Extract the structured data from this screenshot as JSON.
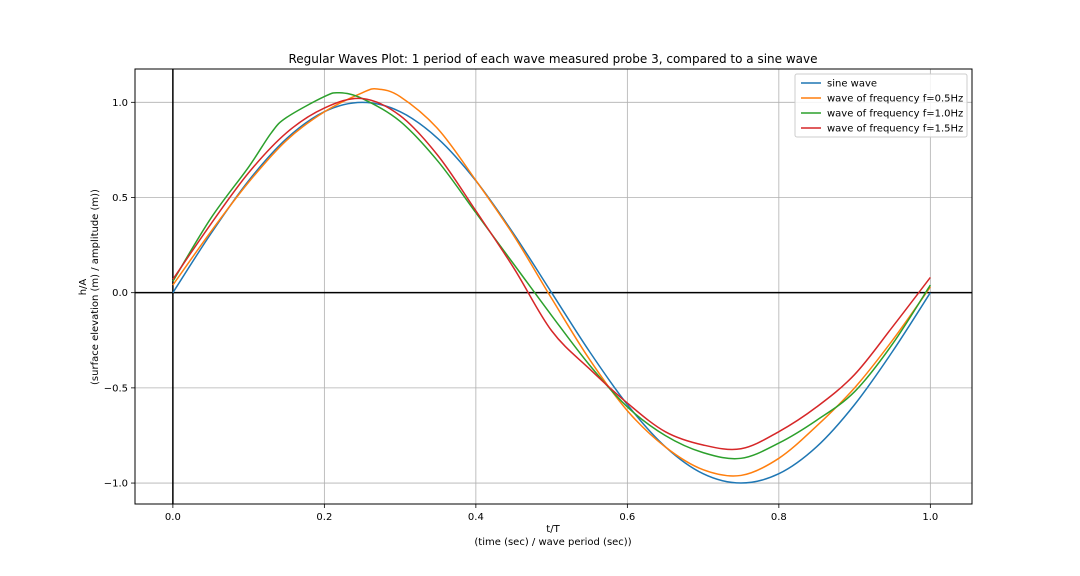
{
  "chart_data": {
    "type": "line",
    "title": "Regular Waves Plot: 1 period of each wave measured probe 3, compared to a sine wave",
    "xlabel": "t/T",
    "xlabel_line2": "(time (sec) / wave period (sec))",
    "ylabel": "h/A",
    "ylabel_line2": "(surface elevation (m) / amplitude (m))",
    "xlim": [
      -0.05,
      1.055
    ],
    "ylim": [
      -1.11,
      1.175
    ],
    "xticks": [
      0.0,
      0.2,
      0.4,
      0.6,
      0.8,
      1.0
    ],
    "xtick_labels": [
      "0.0",
      "0.2",
      "0.4",
      "0.6",
      "0.8",
      "1.0"
    ],
    "yticks": [
      -1.0,
      -0.5,
      0.0,
      0.5,
      1.0
    ],
    "ytick_labels": [
      "−1.0",
      "−0.5",
      "0.0",
      "0.5",
      "1.0"
    ],
    "grid": true,
    "zero_lines": true,
    "legend_position": "top-right",
    "series": [
      {
        "name": "sine wave",
        "color": "#1f77b4",
        "x": [
          0.0,
          0.05,
          0.1,
          0.15,
          0.2,
          0.25,
          0.3,
          0.35,
          0.4,
          0.45,
          0.5,
          0.55,
          0.6,
          0.65,
          0.7,
          0.75,
          0.8,
          0.85,
          0.9,
          0.95,
          1.0
        ],
        "y": [
          0.0,
          0.309,
          0.588,
          0.809,
          0.951,
          1.0,
          0.951,
          0.809,
          0.588,
          0.309,
          0.0,
          -0.309,
          -0.588,
          -0.809,
          -0.951,
          -1.0,
          -0.951,
          -0.809,
          -0.588,
          -0.309,
          0.0
        ]
      },
      {
        "name": "wave of frequency f=0.5Hz",
        "color": "#ff7f0e",
        "x": [
          0.0,
          0.05,
          0.1,
          0.15,
          0.2,
          0.25,
          0.27,
          0.3,
          0.35,
          0.4,
          0.45,
          0.5,
          0.55,
          0.6,
          0.65,
          0.7,
          0.75,
          0.8,
          0.85,
          0.9,
          0.95,
          1.0
        ],
        "y": [
          0.04,
          0.32,
          0.58,
          0.8,
          0.95,
          1.05,
          1.07,
          1.03,
          0.86,
          0.59,
          0.3,
          -0.03,
          -0.35,
          -0.62,
          -0.81,
          -0.93,
          -0.96,
          -0.87,
          -0.7,
          -0.5,
          -0.25,
          0.03
        ]
      },
      {
        "name": "wave of frequency f=1.0Hz",
        "color": "#2ca02c",
        "x": [
          0.0,
          0.05,
          0.1,
          0.13,
          0.15,
          0.2,
          0.22,
          0.25,
          0.3,
          0.35,
          0.4,
          0.45,
          0.5,
          0.55,
          0.6,
          0.65,
          0.7,
          0.75,
          0.8,
          0.85,
          0.9,
          0.95,
          1.0
        ],
        "y": [
          0.06,
          0.39,
          0.66,
          0.84,
          0.92,
          1.03,
          1.05,
          1.02,
          0.9,
          0.69,
          0.42,
          0.15,
          -0.12,
          -0.38,
          -0.6,
          -0.75,
          -0.84,
          -0.87,
          -0.79,
          -0.67,
          -0.52,
          -0.27,
          0.04
        ]
      },
      {
        "name": "wave of frequency f=1.5Hz",
        "color": "#d62728",
        "x": [
          0.0,
          0.05,
          0.1,
          0.15,
          0.2,
          0.25,
          0.3,
          0.35,
          0.4,
          0.45,
          0.5,
          0.55,
          0.6,
          0.65,
          0.7,
          0.75,
          0.8,
          0.85,
          0.9,
          0.95,
          1.0
        ],
        "y": [
          0.07,
          0.36,
          0.63,
          0.84,
          0.97,
          1.02,
          0.93,
          0.72,
          0.43,
          0.13,
          -0.2,
          -0.4,
          -0.58,
          -0.73,
          -0.8,
          -0.82,
          -0.73,
          -0.6,
          -0.43,
          -0.18,
          0.08
        ]
      }
    ]
  }
}
